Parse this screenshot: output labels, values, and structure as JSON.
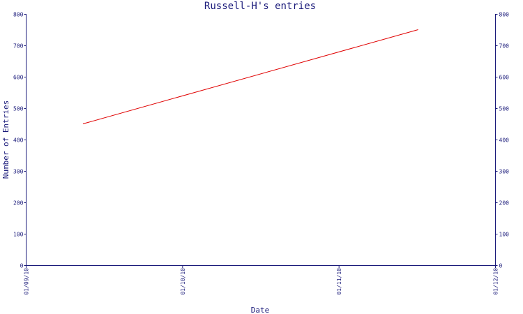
{
  "chart_data": {
    "type": "line",
    "title": "Russell-H's entries",
    "xlabel": "Date",
    "ylabel": "Number of Entries",
    "x_ticks": [
      "01/09/10",
      "01/10/10",
      "01/11/10",
      "01/12/10"
    ],
    "y_ticks": [
      0,
      100,
      200,
      300,
      400,
      500,
      600,
      700,
      800
    ],
    "ylim": [
      0,
      800
    ],
    "xlim": [
      "2010-09-01",
      "2010-12-01"
    ],
    "series": [
      {
        "color": "#e00000",
        "points": [
          {
            "x": "2010-09-12",
            "y": 450
          },
          {
            "x": "2010-11-16",
            "y": 750
          }
        ]
      }
    ],
    "grid": false,
    "right_axis_mirror": true
  }
}
